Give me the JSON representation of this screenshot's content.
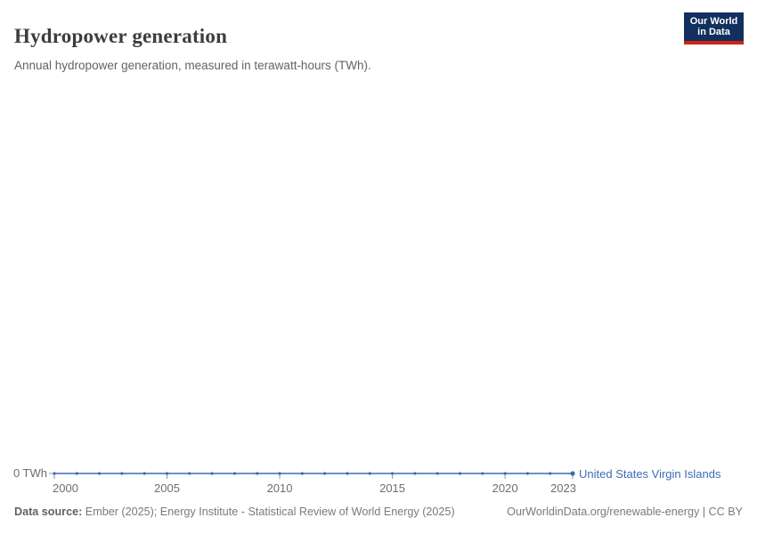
{
  "header": {
    "title": "Hydropower generation",
    "subtitle": "Annual hydropower generation, measured in terawatt-hours (TWh)."
  },
  "logo": {
    "line1": "Our World",
    "line2": "in Data"
  },
  "chart_data": {
    "type": "line",
    "title": "Hydropower generation",
    "unit": "TWh",
    "x": [
      2000,
      2001,
      2002,
      2003,
      2004,
      2005,
      2006,
      2007,
      2008,
      2009,
      2010,
      2011,
      2012,
      2013,
      2014,
      2015,
      2016,
      2017,
      2018,
      2019,
      2020,
      2021,
      2022,
      2023
    ],
    "series": [
      {
        "name": "United States Virgin Islands",
        "values": [
          0,
          0,
          0,
          0,
          0,
          0,
          0,
          0,
          0,
          0,
          0,
          0,
          0,
          0,
          0,
          0,
          0,
          0,
          0,
          0,
          0,
          0,
          0,
          0
        ],
        "color": "#3d6cb5"
      }
    ],
    "x_ticks": [
      2000,
      2005,
      2010,
      2015,
      2020,
      2023
    ],
    "y_ticks": [
      0
    ],
    "y_tick_label": "0 TWh",
    "ylim": [
      0,
      0
    ],
    "grid": false,
    "legend_position": "end-of-line"
  },
  "axis": {
    "zero_label": "0 TWh"
  },
  "entity_label": "United States Virgin Islands",
  "footer": {
    "datasource_label": "Data source:",
    "datasource_text": "Ember (2025); Energy Institute - Statistical Review of World Energy (2025)",
    "link": "OurWorldinData.org/renewable-energy | CC BY"
  },
  "colors": {
    "line": "#3d6cb5",
    "tick": "#7f97c2",
    "axis_text": "#6e6e6e",
    "logo_bg": "#12305e",
    "logo_red": "#cf2317"
  }
}
